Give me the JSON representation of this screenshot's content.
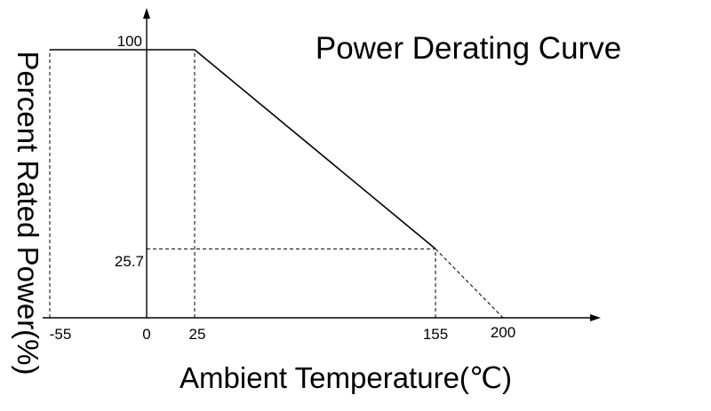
{
  "chart_data": {
    "type": "line",
    "title": "Power Derating Curve",
    "xlabel": "Ambient Temperature(℃)",
    "ylabel": "Percent Rated Power(%)",
    "x_ticks": [
      "-55",
      "0",
      "25",
      "155",
      "200"
    ],
    "y_ticks": [
      "100",
      "25.7"
    ],
    "xlim": [
      -55,
      200
    ],
    "ylim": [
      0,
      100
    ],
    "grid": false,
    "series": [
      {
        "style": "solid",
        "x": [
          -55,
          25,
          155
        ],
        "y": [
          100,
          100,
          25.7
        ]
      },
      {
        "style": "dashed",
        "x": [
          155,
          200
        ],
        "y": [
          25.7,
          0
        ]
      }
    ],
    "guides": [
      {
        "x": [
          -55,
          -55
        ],
        "y": [
          0,
          100
        ]
      },
      {
        "x": [
          25,
          25
        ],
        "y": [
          0,
          100
        ]
      },
      {
        "x": [
          155,
          155
        ],
        "y": [
          0,
          25.7
        ]
      },
      {
        "x": [
          0,
          155
        ],
        "y": [
          25.7,
          25.7
        ]
      }
    ]
  }
}
